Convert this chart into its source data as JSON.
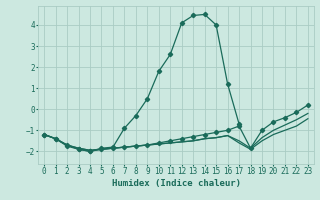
{
  "xlabel": "Humidex (Indice chaleur)",
  "background_color": "#cce8e0",
  "line_color": "#1a6b5a",
  "grid_color": "#aaccc4",
  "xlim": [
    -0.5,
    23.5
  ],
  "ylim": [
    -2.6,
    4.9
  ],
  "xticks": [
    0,
    1,
    2,
    3,
    4,
    5,
    6,
    7,
    8,
    9,
    10,
    11,
    12,
    13,
    14,
    15,
    16,
    17,
    18,
    19,
    20,
    21,
    22,
    23
  ],
  "yticks": [
    -2,
    -1,
    0,
    1,
    2,
    3,
    4
  ],
  "lines": [
    {
      "x": [
        0,
        1,
        2,
        3,
        4,
        5,
        6,
        7,
        8,
        9,
        10,
        11,
        12,
        13,
        14,
        15,
        16,
        17,
        18,
        19,
        20,
        21,
        22,
        23
      ],
      "y": [
        -1.2,
        -1.4,
        -1.7,
        -1.9,
        -2.0,
        -1.85,
        -1.8,
        -0.9,
        -0.3,
        0.5,
        1.8,
        2.6,
        4.1,
        4.45,
        4.5,
        4.0,
        1.2,
        -0.7,
        null,
        null,
        null,
        null,
        null,
        null
      ],
      "has_markers": true
    },
    {
      "x": [
        0,
        1,
        2,
        3,
        4,
        5,
        6,
        7,
        8,
        9,
        10,
        11,
        12,
        13,
        14,
        15,
        16,
        17,
        18,
        19,
        20,
        21,
        22,
        23
      ],
      "y": [
        -1.2,
        -1.4,
        -1.75,
        -1.9,
        -2.0,
        -1.9,
        -1.85,
        -1.8,
        -1.75,
        -1.7,
        -1.6,
        -1.5,
        -1.4,
        -1.3,
        -1.2,
        -1.1,
        -1.0,
        -0.8,
        -1.85,
        -1.0,
        -0.6,
        -0.4,
        -0.15,
        0.2
      ],
      "has_markers": true
    },
    {
      "x": [
        0,
        1,
        2,
        3,
        4,
        5,
        6,
        7,
        8,
        9,
        10,
        11,
        12,
        13,
        14,
        15,
        16,
        17,
        18,
        19,
        20,
        21,
        22,
        23
      ],
      "y": [
        -1.2,
        -1.4,
        -1.7,
        -1.85,
        -1.95,
        -1.9,
        -1.85,
        -1.8,
        -1.75,
        -1.7,
        -1.65,
        -1.6,
        -1.55,
        -1.5,
        -1.4,
        -1.35,
        -1.25,
        -1.5,
        -1.85,
        -1.35,
        -1.0,
        -0.75,
        -0.5,
        -0.2
      ],
      "has_markers": false
    },
    {
      "x": [
        0,
        1,
        2,
        3,
        4,
        5,
        6,
        7,
        8,
        9,
        10,
        11,
        12,
        13,
        14,
        15,
        16,
        17,
        18,
        19,
        20,
        21,
        22,
        23
      ],
      "y": [
        -1.2,
        -1.4,
        -1.7,
        -1.85,
        -1.95,
        -1.9,
        -1.85,
        -1.8,
        -1.75,
        -1.7,
        -1.65,
        -1.6,
        -1.55,
        -1.5,
        -1.4,
        -1.35,
        -1.25,
        -1.6,
        -1.9,
        -1.5,
        -1.2,
        -1.0,
        -0.8,
        -0.45
      ],
      "has_markers": false
    }
  ]
}
